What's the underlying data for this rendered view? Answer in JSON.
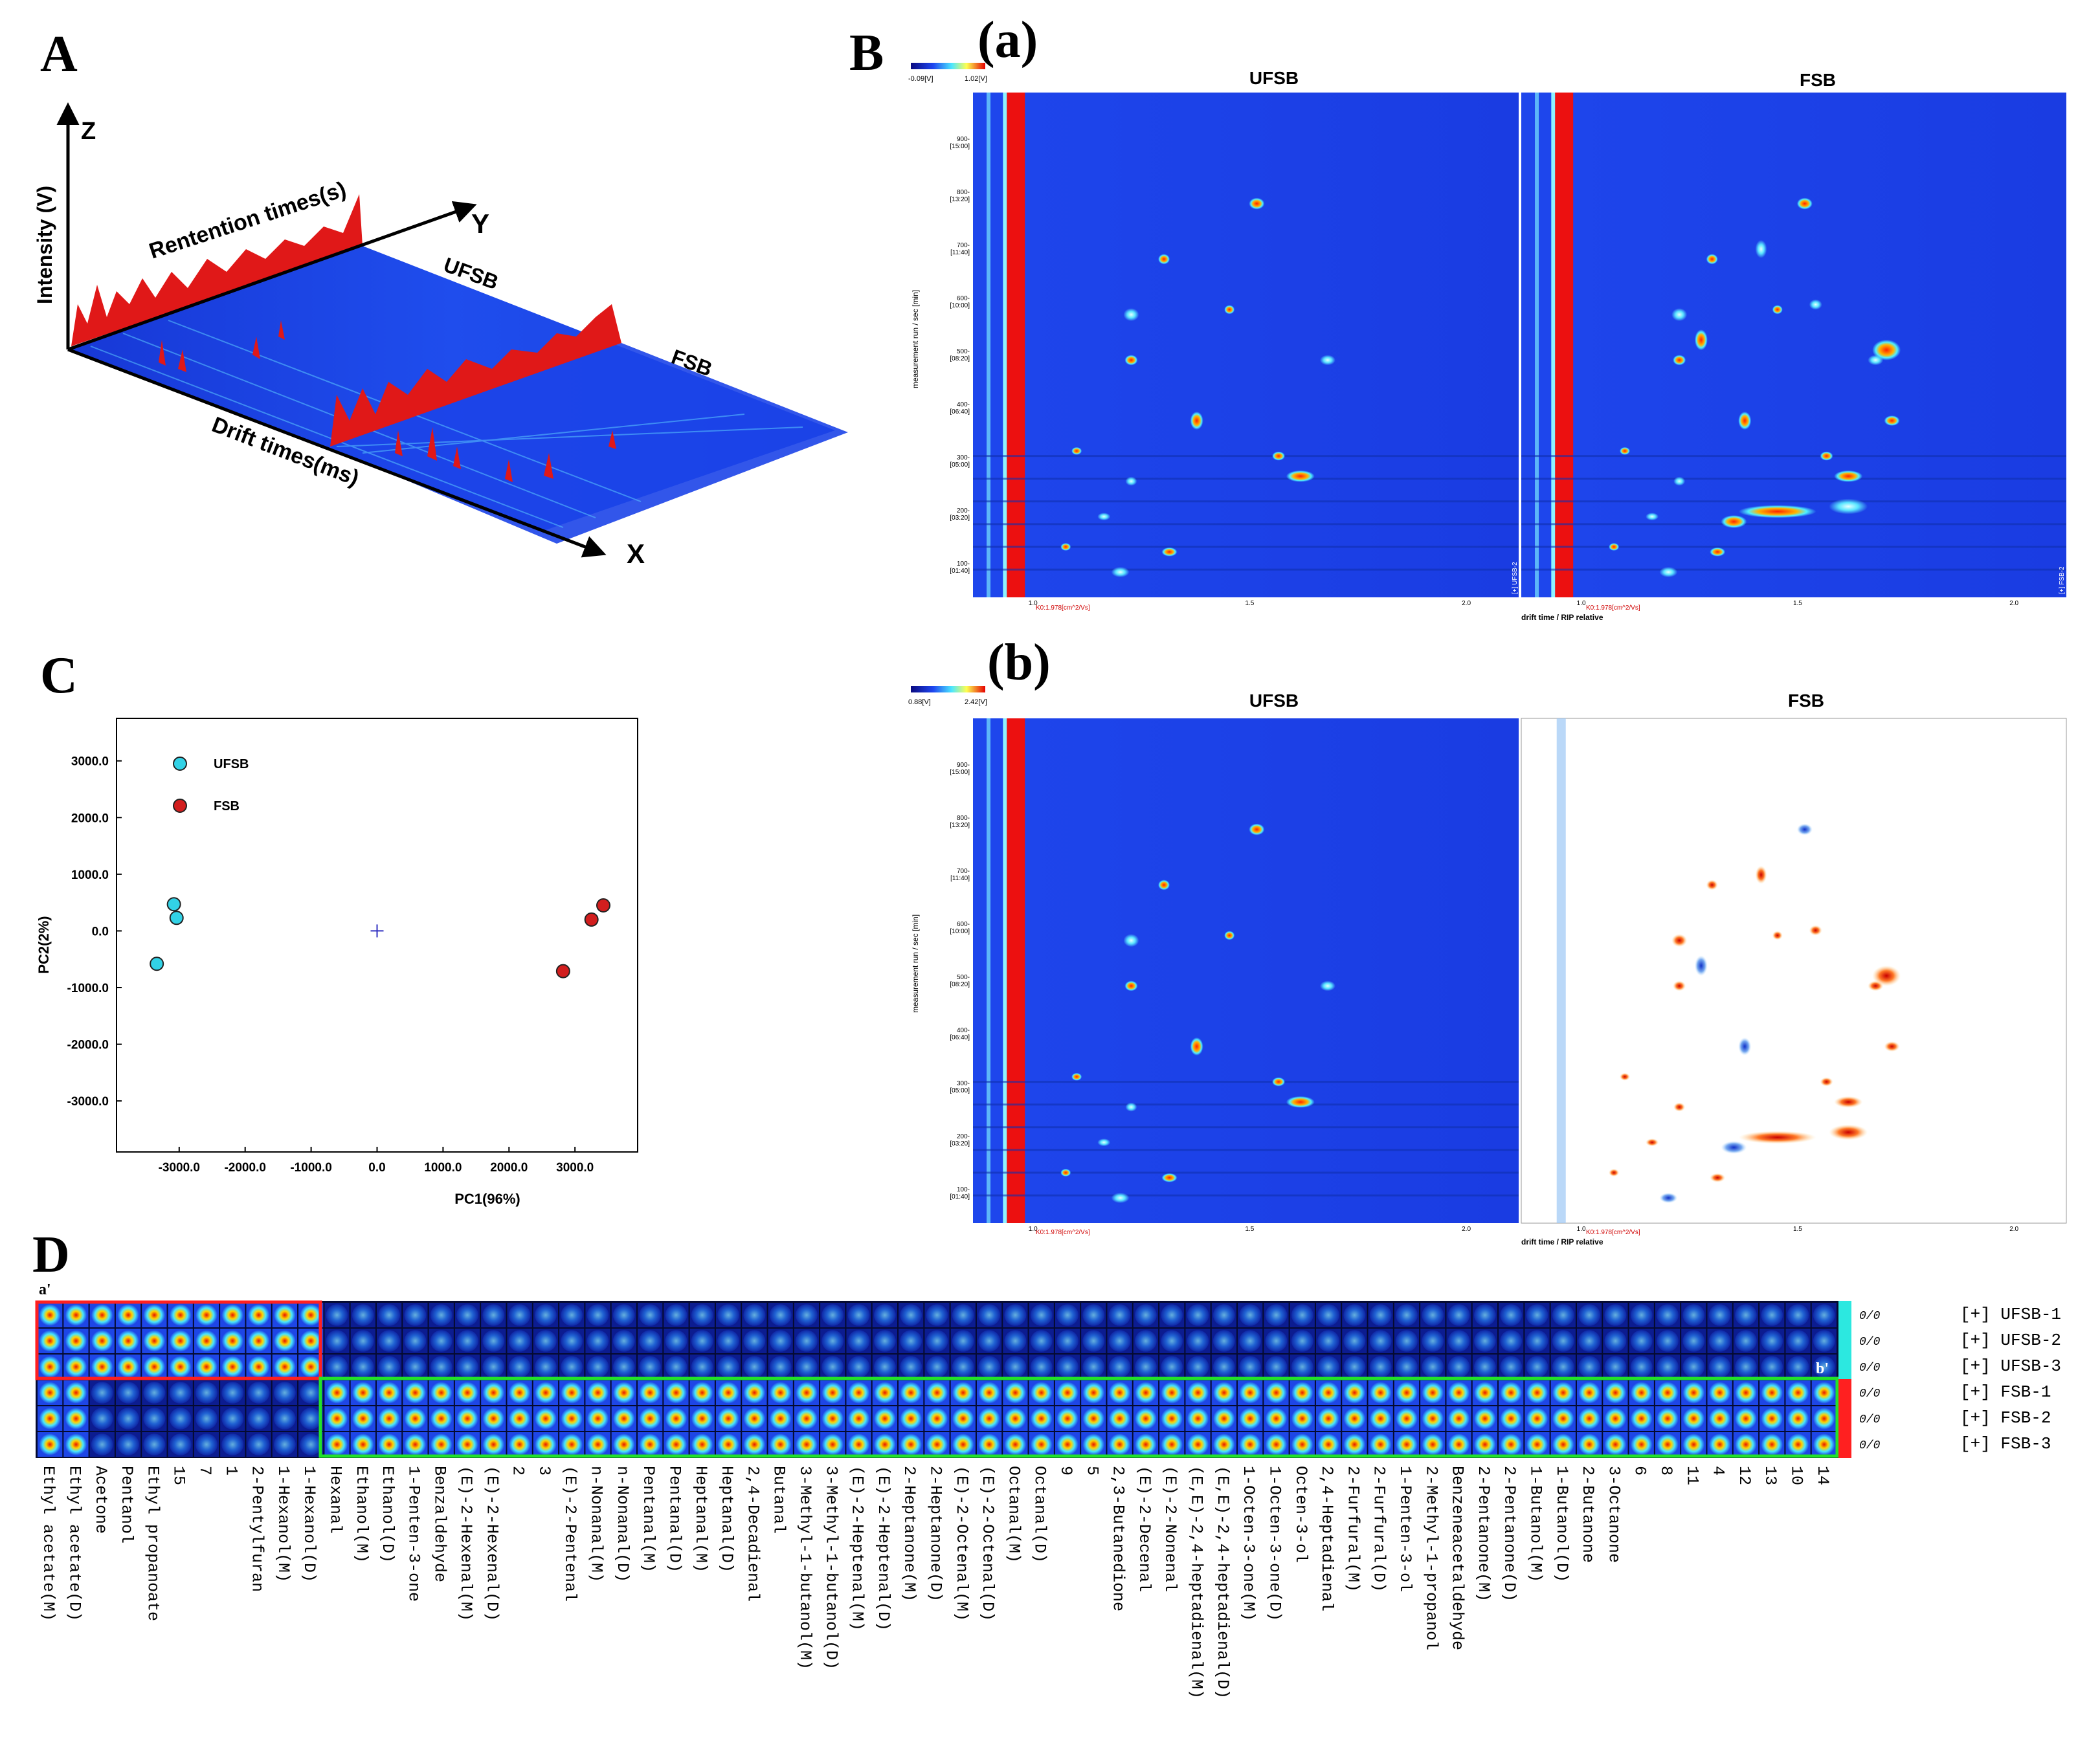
{
  "panels": {
    "A": "A",
    "B": "B",
    "C": "C",
    "D": "D",
    "Ba": "(a)",
    "Bb": "(b)"
  },
  "panelA": {
    "z": "Z",
    "y": "Y",
    "x": "X",
    "intensity": "Intensity (V)",
    "retention": "Rentention times(s)",
    "drift": "Drift times(ms)",
    "ufsb": "UFSB",
    "fsb": "FSB"
  },
  "panelB": {
    "colorbar_a_min": "-0.09[V]",
    "colorbar_a_max": "1.02[V]",
    "colorbar_b_min": "0.88[V]",
    "colorbar_b_max": "2.42[V]",
    "sample_left": "UFSB",
    "sample_right": "FSB",
    "y_label": "measurement run / sec [min]",
    "x_label": "drift time / RIP relative",
    "rip_label": "K0:1.978[cm^2/Vs]",
    "y_ticks": [
      {
        "s": "900-",
        "m": "[15:00]"
      },
      {
        "s": "800-",
        "m": "[13:20]"
      },
      {
        "s": "700-",
        "m": "[11:40]"
      },
      {
        "s": "600-",
        "m": "[10:00]"
      },
      {
        "s": "500-",
        "m": "[08:20]"
      },
      {
        "s": "400-",
        "m": "[06:40]"
      },
      {
        "s": "300-",
        "m": "[05:00]"
      },
      {
        "s": "200-",
        "m": "[03:20]"
      },
      {
        "s": "100-",
        "m": "[01:40]"
      }
    ],
    "x_ticks": [
      "1.0",
      "1.5",
      "2.0"
    ],
    "tag_ufsb": "[+] UFSB-2",
    "tag_fsb": "[+] FSB-2"
  },
  "panelC": {
    "xlabel": "PC1(96%)",
    "ylabel": "PC2(2%)",
    "legend": [
      {
        "name": "UFSB",
        "color": "#32d2e6"
      },
      {
        "name": "FSB",
        "color": "#d21e1e"
      }
    ],
    "x_ticks": [
      "-3000.0",
      "-2000.0",
      "-1000.0",
      "0.0",
      "1000.0",
      "2000.0",
      "3000.0"
    ],
    "y_ticks": [
      "3000.0",
      "2000.0",
      "1000.0",
      "0.0",
      "-1000.0",
      "-2000.0",
      "-3000.0"
    ]
  },
  "chart_data": {
    "type": "scatter",
    "xlabel": "PC1(96%)",
    "ylabel": "PC2(2%)",
    "xlim": [
      -3950,
      3950
    ],
    "ylim": [
      -3900,
      3750
    ],
    "series": [
      {
        "name": "UFSB",
        "color": "#32d2e6",
        "points": [
          [
            -3080,
            470
          ],
          [
            -3040,
            230
          ],
          [
            -3340,
            -580
          ]
        ]
      },
      {
        "name": "FSB",
        "color": "#d21e1e",
        "points": [
          [
            3430,
            450
          ],
          [
            3250,
            200
          ],
          [
            2820,
            -710
          ]
        ]
      }
    ],
    "center_marker": [
      0,
      0
    ]
  },
  "panelD": {
    "corner_a": "a'",
    "corner_b": "b'",
    "row_values": [
      "0/0",
      "0/0",
      "0/0",
      "0/0",
      "0/0",
      "0/0"
    ],
    "samples": [
      "[+] UFSB-1",
      "[+] UFSB-2",
      "[+] UFSB-3",
      "[+] FSB-1",
      "[+] FSB-2",
      "[+] FSB-3"
    ],
    "compounds": [
      "Ethyl acetate(M)",
      "Ethyl acetate(D)",
      "Acetone",
      "Pentanol",
      "Ethyl propanoate",
      "15",
      "7",
      "1",
      "2-Pentylfuran",
      "1-Hexanol(M)",
      "1-Hexanol(D)",
      "Hexanal",
      "Ethanol(M)",
      "Ethanol(D)",
      "1-Penten-3-one",
      "Benzaldehyde",
      "(E)-2-Hexenal(M)",
      "(E)-2-Hexenal(D)",
      "2",
      "3",
      "(E)-2-Pentenal",
      "n-Nonanal(M)",
      "n-Nonanal(D)",
      "Pentanal(M)",
      "Pentanal(D)",
      "Heptanal(M)",
      "Heptanal(D)",
      "2,4-Decadienal",
      "Butanal",
      "3-Methyl-1-butanol(M)",
      "3-Methyl-1-butanol(D)",
      "(E)-2-Heptenal(M)",
      "(E)-2-Heptenal(D)",
      "2-Heptanone(M)",
      "2-Heptanone(D)",
      "(E)-2-Octenal(M)",
      "(E)-2-Octenal(D)",
      "Octanal(M)",
      "Octanal(D)",
      "9",
      "5",
      "2,3-Butanedione",
      "(E)-2-Decenal",
      "(E)-2-Nonenal",
      "(E,E)-2,4-heptadienal(M)",
      "(E,E)-2,4-heptadienal(D)",
      "1-Octen-3-one(M)",
      "1-Octen-3-one(D)",
      "Octen-3-ol",
      "2,4-Heptadienal",
      "2-Furfural(M)",
      "2-Furfural(D)",
      "1-Penten-3-ol",
      "2-Methyl-1-propanol",
      "Benzeneacetaldehyde",
      "2-Pentanone(M)",
      "2-Pentanone(D)",
      "1-Butanol(M)",
      "1-Butanol(D)",
      "2-Butanone",
      "3-Octanone",
      "6",
      "8",
      "11",
      "4",
      "12",
      "13",
      "10",
      "14"
    ]
  }
}
